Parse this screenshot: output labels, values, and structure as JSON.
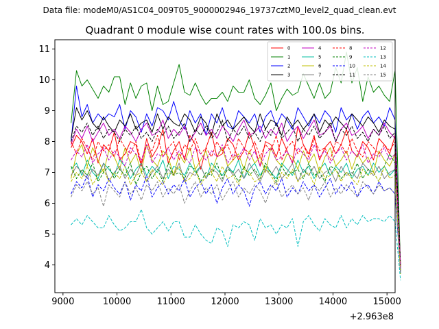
{
  "chart_data": {
    "type": "line",
    "file_label": "Data file: modeM0/AS1C04_009T05_9000002946_19737cztM0_level2_quad_clean.evt",
    "title": "Quadrant 0 module wise count rates with 100.0s bins.",
    "offset_label": "+2.963e8",
    "xlim": [
      8850,
      15150
    ],
    "ylim": [
      3.1,
      11.3
    ],
    "xticks": [
      9000,
      10000,
      11000,
      12000,
      13000,
      14000,
      15000
    ],
    "xtick_labels": [
      "9000",
      "10000",
      "11000",
      "12000",
      "13000",
      "14000",
      "15000"
    ],
    "yticks": [
      4,
      5,
      6,
      7,
      8,
      9,
      10,
      11
    ],
    "ytick_labels": [
      "4",
      "5",
      "6",
      "7",
      "8",
      "9",
      "10",
      "11"
    ],
    "x_start": 9150,
    "x_step": 100,
    "legend_position": "top-right",
    "series": [
      {
        "name": "0",
        "color": "#ff0000",
        "dash": "solid",
        "values": [
          7.8,
          8.2,
          8.0,
          7.6,
          8.1,
          7.3,
          7.9,
          7.7,
          8.3,
          7.4,
          7.6,
          8.0,
          7.9,
          7.2,
          8.1,
          7.5,
          7.8,
          8.4,
          7.3,
          7.7,
          8.0,
          7.4,
          8.2,
          7.9,
          7.1,
          7.8,
          8.3,
          7.5,
          7.6,
          8.1,
          7.9,
          7.4,
          7.7,
          8.3,
          7.8,
          7.2,
          8.0,
          7.9,
          7.5,
          8.1,
          7.7,
          7.3,
          8.5,
          7.9,
          7.6,
          8.2,
          7.4,
          7.8,
          8.0,
          7.6,
          7.9,
          8.4,
          7.7,
          7.5,
          8.0,
          7.8,
          7.4,
          8.1,
          7.9,
          7.6,
          8.2,
          4.0
        ]
      },
      {
        "name": "1",
        "color": "#008000",
        "dash": "solid",
        "values": [
          8.6,
          10.3,
          9.8,
          10.0,
          9.7,
          9.4,
          9.8,
          9.6,
          10.1,
          10.1,
          9.2,
          9.9,
          9.4,
          9.8,
          9.9,
          9.0,
          9.8,
          9.2,
          9.3,
          9.9,
          10.5,
          9.6,
          9.5,
          9.9,
          9.5,
          9.2,
          9.4,
          9.4,
          9.6,
          9.3,
          9.8,
          9.6,
          9.6,
          10.0,
          9.4,
          9.2,
          9.5,
          9.9,
          9.0,
          9.4,
          9.7,
          9.5,
          9.6,
          10.2,
          9.8,
          9.4,
          9.9,
          9.4,
          9.6,
          10.4,
          9.9,
          10.9,
          9.9,
          10.4,
          9.3,
          10.1,
          9.6,
          9.8,
          9.5,
          9.3,
          10.3,
          3.8
        ]
      },
      {
        "name": "2",
        "color": "#0000ff",
        "dash": "solid",
        "values": [
          8.0,
          9.8,
          8.8,
          9.2,
          8.6,
          8.9,
          8.7,
          8.9,
          8.8,
          9.2,
          8.4,
          9.0,
          8.8,
          8.3,
          8.9,
          8.5,
          9.1,
          9.0,
          8.7,
          9.3,
          8.7,
          8.4,
          9.0,
          8.6,
          8.9,
          8.2,
          8.9,
          8.6,
          9.1,
          8.5,
          8.4,
          9.0,
          8.8,
          8.6,
          8.9,
          8.3,
          8.8,
          9.0,
          8.5,
          8.9,
          8.7,
          8.4,
          9.1,
          8.8,
          8.5,
          8.9,
          8.6,
          9.0,
          8.8,
          8.3,
          9.1,
          8.7,
          8.9,
          8.4,
          8.8,
          9.0,
          8.6,
          8.8,
          8.5,
          9.1,
          8.7,
          3.7
        ]
      },
      {
        "name": "3",
        "color": "#000000",
        "dash": "solid",
        "values": [
          8.1,
          9.1,
          8.7,
          9.0,
          8.6,
          8.4,
          8.8,
          8.5,
          8.3,
          8.7,
          8.5,
          8.9,
          8.4,
          8.6,
          8.7,
          8.3,
          8.9,
          8.4,
          8.8,
          8.6,
          8.5,
          8.9,
          8.7,
          8.3,
          8.8,
          8.6,
          8.2,
          8.9,
          8.5,
          8.7,
          8.4,
          8.6,
          8.8,
          8.5,
          8.3,
          8.9,
          8.4,
          8.7,
          8.6,
          8.2,
          8.8,
          8.5,
          8.7,
          8.4,
          8.6,
          8.9,
          8.3,
          8.7,
          8.5,
          8.8,
          8.6,
          8.4,
          8.9,
          8.7,
          8.5,
          8.8,
          8.6,
          8.3,
          8.7,
          8.5,
          8.4,
          4.0
        ]
      },
      {
        "name": "4",
        "color": "#c000c0",
        "dash": "solid",
        "values": [
          7.9,
          8.4,
          8.1,
          8.5,
          8.0,
          8.3,
          8.6,
          8.2,
          8.4,
          8.1,
          8.5,
          8.3,
          8.0,
          8.4,
          8.6,
          8.2,
          8.3,
          8.7,
          8.1,
          8.4,
          8.2,
          8.5,
          8.0,
          8.3,
          8.6,
          8.2,
          8.4,
          8.1,
          8.5,
          8.3,
          8.0,
          8.4,
          8.7,
          8.2,
          8.3,
          8.5,
          8.1,
          8.4,
          8.2,
          8.6,
          8.0,
          8.3,
          8.5,
          8.1,
          8.4,
          8.7,
          8.2,
          8.3,
          8.5,
          8.0,
          8.4,
          8.6,
          8.2,
          8.3,
          8.5,
          8.1,
          8.4,
          8.2,
          8.6,
          8.3,
          8.1,
          3.9
        ]
      },
      {
        "name": "5",
        "color": "#00bfa0",
        "dash": "solid",
        "values": [
          7.1,
          7.3,
          6.9,
          7.4,
          7.0,
          6.8,
          7.3,
          7.1,
          6.9,
          7.4,
          7.2,
          6.8,
          7.1,
          7.3,
          6.9,
          7.2,
          7.0,
          7.4,
          6.8,
          7.2,
          7.1,
          6.9,
          7.3,
          7.0,
          7.2,
          6.8,
          7.3,
          7.1,
          6.9,
          7.2,
          7.0,
          7.4,
          6.8,
          7.1,
          7.3,
          6.9,
          7.2,
          7.0,
          6.8,
          7.3,
          7.1,
          6.9,
          7.4,
          7.0,
          7.2,
          6.8,
          7.1,
          7.3,
          6.9,
          7.2,
          7.0,
          7.3,
          6.8,
          7.1,
          7.2,
          6.9,
          7.3,
          7.0,
          7.2,
          6.9,
          7.1,
          3.7
        ]
      },
      {
        "name": "6",
        "color": "#bfbf00",
        "dash": "solid",
        "values": [
          6.8,
          7.6,
          7.9,
          7.2,
          7.8,
          7.4,
          7.0,
          7.7,
          7.5,
          7.1,
          7.8,
          7.3,
          7.6,
          7.0,
          7.9,
          7.4,
          7.2,
          7.7,
          7.5,
          6.9,
          7.6,
          7.3,
          7.8,
          7.1,
          7.4,
          7.7,
          7.0,
          7.5,
          7.8,
          7.2,
          7.4,
          7.6,
          7.1,
          7.7,
          7.3,
          7.5,
          7.0,
          7.8,
          7.4,
          7.2,
          7.6,
          7.5,
          7.1,
          7.7,
          7.3,
          7.6,
          7.0,
          7.5,
          7.8,
          7.2,
          7.4,
          7.7,
          7.1,
          7.6,
          7.3,
          7.5,
          7.0,
          7.7,
          7.4,
          7.2,
          7.6,
          3.8
        ]
      },
      {
        "name": "7",
        "color": "#808080",
        "dash": "solid",
        "values": [
          6.9,
          7.2,
          7.0,
          6.8,
          7.1,
          6.9,
          7.3,
          6.7,
          7.0,
          7.2,
          6.8,
          7.1,
          6.9,
          7.3,
          6.7,
          7.0,
          7.2,
          6.8,
          7.1,
          6.9,
          7.3,
          6.7,
          7.0,
          6.9,
          7.2,
          6.8,
          7.1,
          7.0,
          6.7,
          7.2,
          6.9,
          7.1,
          6.8,
          7.3,
          7.0,
          6.7,
          7.1,
          6.9,
          7.2,
          6.8,
          7.0,
          7.3,
          6.7,
          7.1,
          6.9,
          7.2,
          6.8,
          7.0,
          7.1,
          6.7,
          7.2,
          6.9,
          7.0,
          6.8,
          7.3,
          7.1,
          6.9,
          7.2,
          6.8,
          7.0,
          7.1,
          3.8
        ]
      },
      {
        "name": "8",
        "color": "#ff0000",
        "dash": "dashed",
        "values": [
          8.0,
          7.6,
          8.1,
          7.8,
          7.4,
          8.0,
          7.7,
          7.9,
          7.5,
          8.1,
          7.8,
          7.6,
          8.0,
          7.3,
          7.9,
          7.7,
          8.2,
          7.5,
          7.8,
          8.0,
          7.4,
          7.9,
          7.7,
          8.1,
          7.6,
          7.8,
          7.5,
          8.0,
          7.7,
          7.9,
          7.4,
          8.1,
          7.8,
          7.6,
          8.0,
          7.5,
          7.9,
          7.7,
          8.2,
          7.4,
          7.8,
          8.0,
          7.6,
          7.9,
          7.5,
          8.1,
          7.7,
          7.8,
          7.4,
          8.0,
          7.9,
          7.6,
          8.1,
          7.7,
          7.5,
          8.0,
          7.8,
          7.6,
          7.9,
          7.7,
          8.0,
          3.9
        ]
      },
      {
        "name": "9",
        "color": "#008000",
        "dash": "dashed",
        "values": [
          7.2,
          6.8,
          7.1,
          6.9,
          7.3,
          6.7,
          7.0,
          7.2,
          6.8,
          7.1,
          6.9,
          7.3,
          6.6,
          7.0,
          7.2,
          6.8,
          7.1,
          6.7,
          7.3,
          6.9,
          7.0,
          6.8,
          7.2,
          7.1,
          6.7,
          7.0,
          6.9,
          7.3,
          6.8,
          7.1,
          7.0,
          6.7,
          7.2,
          6.9,
          7.1,
          6.8,
          7.3,
          7.0,
          6.7,
          7.2,
          6.9,
          7.0,
          7.1,
          6.8,
          7.3,
          6.9,
          7.0,
          6.7,
          7.2,
          7.1,
          6.8,
          7.0,
          6.9,
          7.3,
          6.8,
          7.1,
          7.0,
          6.7,
          7.2,
          7.6,
          7.3,
          3.8
        ]
      },
      {
        "name": "10",
        "color": "#0000ff",
        "dash": "dashed",
        "values": [
          6.3,
          6.7,
          6.5,
          6.9,
          6.2,
          6.6,
          6.4,
          6.8,
          6.5,
          6.3,
          6.7,
          6.1,
          6.6,
          6.4,
          6.9,
          6.2,
          6.5,
          6.7,
          6.3,
          6.6,
          6.4,
          6.8,
          6.2,
          6.5,
          6.7,
          6.3,
          6.6,
          6.0,
          6.5,
          6.8,
          6.3,
          6.6,
          6.4,
          5.9,
          6.5,
          6.7,
          6.3,
          6.6,
          6.4,
          6.8,
          6.2,
          6.5,
          6.3,
          6.7,
          6.4,
          6.6,
          6.2,
          6.5,
          6.8,
          6.3,
          6.6,
          6.4,
          6.7,
          6.2,
          6.5,
          6.6,
          6.3,
          6.7,
          6.4,
          6.5,
          6.3,
          3.8
        ]
      },
      {
        "name": "11",
        "color": "#000000",
        "dash": "dashed",
        "values": [
          8.0,
          8.5,
          8.3,
          8.6,
          8.2,
          8.5,
          8.1,
          8.4,
          8.3,
          8.0,
          8.4,
          8.2,
          8.5,
          8.1,
          8.3,
          8.0,
          8.4,
          8.2,
          8.5,
          8.1,
          8.3,
          8.6,
          8.0,
          8.4,
          8.2,
          8.5,
          8.1,
          8.3,
          8.7,
          8.0,
          8.4,
          8.2,
          8.5,
          8.1,
          8.3,
          8.0,
          8.4,
          8.2,
          8.6,
          8.1,
          8.3,
          8.5,
          8.0,
          8.4,
          8.2,
          8.5,
          8.1,
          8.3,
          8.6,
          8.0,
          8.4,
          8.2,
          8.5,
          8.1,
          8.3,
          8.0,
          8.4,
          8.2,
          8.5,
          8.1,
          8.3,
          3.9
        ]
      },
      {
        "name": "12",
        "color": "#c000c0",
        "dash": "dashed",
        "values": [
          7.4,
          7.7,
          7.5,
          7.9,
          7.3,
          7.6,
          7.8,
          7.4,
          7.7,
          7.5,
          7.2,
          7.8,
          7.6,
          7.4,
          7.9,
          7.3,
          7.6,
          7.5,
          7.8,
          7.4,
          7.7,
          7.5,
          7.3,
          7.8,
          7.6,
          7.4,
          7.7,
          7.5,
          7.9,
          7.3,
          7.6,
          7.5,
          7.8,
          7.4,
          7.7,
          7.2,
          7.6,
          7.8,
          7.4,
          7.5,
          7.7,
          7.3,
          7.8,
          7.6,
          7.4,
          7.9,
          7.5,
          7.7,
          7.3,
          7.6,
          7.8,
          7.4,
          7.7,
          7.5,
          7.9,
          7.3,
          7.6,
          7.5,
          7.8,
          7.4,
          7.6,
          3.9
        ]
      },
      {
        "name": "13",
        "color": "#00bfbf",
        "dash": "dashed",
        "values": [
          5.3,
          5.5,
          5.3,
          5.6,
          5.4,
          5.2,
          5.2,
          5.6,
          5.3,
          5.1,
          5.2,
          5.4,
          5.4,
          5.8,
          5.2,
          5.0,
          5.2,
          5.4,
          5.1,
          5.4,
          5.4,
          4.9,
          4.9,
          5.3,
          5.0,
          4.8,
          4.7,
          5.2,
          5.1,
          4.6,
          5.3,
          5.2,
          5.4,
          5.3,
          4.8,
          5.5,
          5.2,
          5.3,
          5.0,
          5.3,
          5.2,
          5.5,
          4.6,
          5.4,
          5.6,
          5.3,
          5.1,
          5.5,
          5.3,
          5.2,
          5.6,
          5.2,
          5.5,
          5.3,
          5.6,
          5.4,
          5.5,
          5.5,
          5.4,
          5.6,
          5.4,
          3.5
        ]
      },
      {
        "name": "14",
        "color": "#bfbf00",
        "dash": "dashed",
        "values": [
          6.7,
          7.0,
          6.8,
          7.2,
          6.6,
          6.9,
          7.1,
          6.7,
          7.0,
          6.8,
          7.2,
          6.6,
          6.9,
          7.0,
          6.7,
          7.1,
          6.8,
          6.6,
          7.0,
          6.9,
          7.2,
          6.7,
          6.8,
          7.1,
          6.6,
          6.9,
          7.0,
          6.7,
          7.2,
          6.8,
          6.9,
          6.6,
          7.1,
          7.0,
          6.7,
          6.8,
          7.2,
          6.9,
          6.6,
          7.0,
          6.8,
          7.1,
          6.7,
          6.9,
          7.0,
          6.6,
          7.2,
          6.8,
          6.9,
          7.1,
          6.7,
          7.0,
          6.8,
          6.6,
          7.1,
          6.9,
          7.0,
          6.7,
          7.2,
          6.8,
          6.9,
          3.7
        ]
      },
      {
        "name": "15",
        "color": "#808080",
        "dash": "dashed",
        "values": [
          6.2,
          6.6,
          6.4,
          6.7,
          6.3,
          6.5,
          5.9,
          6.6,
          6.4,
          6.2,
          6.7,
          6.3,
          6.5,
          6.1,
          6.6,
          6.4,
          6.7,
          6.2,
          6.5,
          6.3,
          6.6,
          6.0,
          6.4,
          6.7,
          6.2,
          6.5,
          6.3,
          6.6,
          6.1,
          6.4,
          6.7,
          6.2,
          6.5,
          6.3,
          6.6,
          6.4,
          6.0,
          6.5,
          6.7,
          6.2,
          6.4,
          6.6,
          6.3,
          6.5,
          6.1,
          6.6,
          6.4,
          6.7,
          6.2,
          6.5,
          6.3,
          6.6,
          6.4,
          6.2,
          6.7,
          6.5,
          6.3,
          6.6,
          6.4,
          6.5,
          6.3,
          3.7
        ]
      }
    ]
  }
}
